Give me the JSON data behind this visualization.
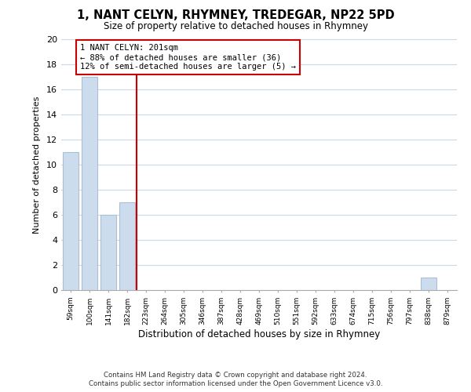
{
  "title": "1, NANT CELYN, RHYMNEY, TREDEGAR, NP22 5PD",
  "subtitle": "Size of property relative to detached houses in Rhymney",
  "xlabel": "Distribution of detached houses by size in Rhymney",
  "ylabel": "Number of detached properties",
  "bins": [
    "59sqm",
    "100sqm",
    "141sqm",
    "182sqm",
    "223sqm",
    "264sqm",
    "305sqm",
    "346sqm",
    "387sqm",
    "428sqm",
    "469sqm",
    "510sqm",
    "551sqm",
    "592sqm",
    "633sqm",
    "674sqm",
    "715sqm",
    "756sqm",
    "797sqm",
    "838sqm",
    "879sqm"
  ],
  "counts": [
    11,
    17,
    6,
    7,
    0,
    0,
    0,
    0,
    0,
    0,
    0,
    0,
    0,
    0,
    0,
    0,
    0,
    0,
    0,
    1,
    0
  ],
  "bar_color": "#ccdcec",
  "bar_edge_color": "#aac0d8",
  "redline_x": 3.52,
  "redline_color": "#cc0000",
  "ylim": [
    0,
    20
  ],
  "yticks": [
    0,
    2,
    4,
    6,
    8,
    10,
    12,
    14,
    16,
    18,
    20
  ],
  "annotation_text": "1 NANT CELYN: 201sqm\n← 88% of detached houses are smaller (36)\n12% of semi-detached houses are larger (5) →",
  "annotation_box_color": "#ffffff",
  "annotation_box_edge": "#cc0000",
  "footer_line1": "Contains HM Land Registry data © Crown copyright and database right 2024.",
  "footer_line2": "Contains public sector information licensed under the Open Government Licence v3.0.",
  "bg_color": "#ffffff",
  "grid_color": "#ccd8e4"
}
